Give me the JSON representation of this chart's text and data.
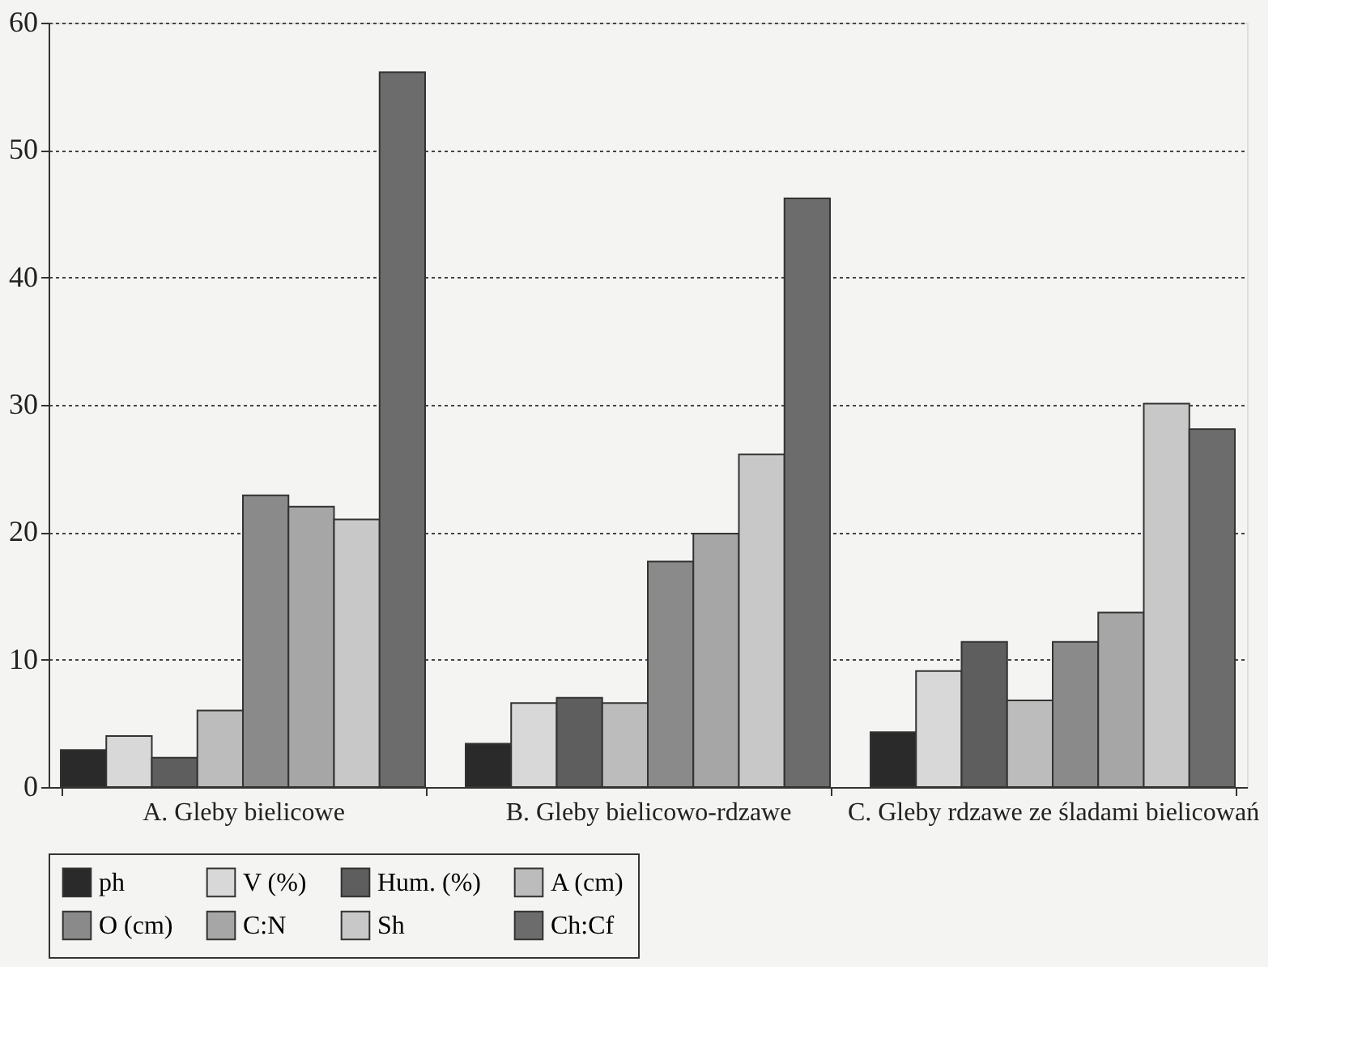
{
  "chart_data": {
    "type": "bar",
    "categories": [
      "A. Gleby bielicowe",
      "B. Gleby bielicowo-rdzawe",
      "C. Gleby rdzawe ze śladami bielicowań"
    ],
    "series": [
      {
        "name": "ph",
        "color": "#2a2a2a",
        "values": [
          2.9,
          3.4,
          4.3
        ]
      },
      {
        "name": "V (%)",
        "color": "#d8d8d8",
        "values": [
          4.0,
          6.6,
          9.1
        ]
      },
      {
        "name": "Hum. (%)",
        "color": "#5e5e5e",
        "values": [
          2.3,
          7.0,
          11.4
        ]
      },
      {
        "name": "A (cm)",
        "color": "#bcbcbc",
        "values": [
          6.0,
          6.6,
          6.8
        ]
      },
      {
        "name": "O (cm)",
        "color": "#8a8a8a",
        "values": [
          22.9,
          17.7,
          11.4
        ]
      },
      {
        "name": "C:N",
        "color": "#a6a6a6",
        "values": [
          22.0,
          19.9,
          13.7
        ]
      },
      {
        "name": "Sh",
        "color": "#c8c8c8",
        "values": [
          21.0,
          26.1,
          30.1
        ]
      },
      {
        "name": "Ch:Cf",
        "color": "#6c6c6c",
        "values": [
          56.1,
          46.2,
          28.1
        ]
      }
    ],
    "ylim": [
      0,
      60
    ],
    "yticks": [
      0,
      10,
      20,
      30,
      40,
      50,
      60
    ],
    "grid": "y",
    "legend": "bottom"
  }
}
